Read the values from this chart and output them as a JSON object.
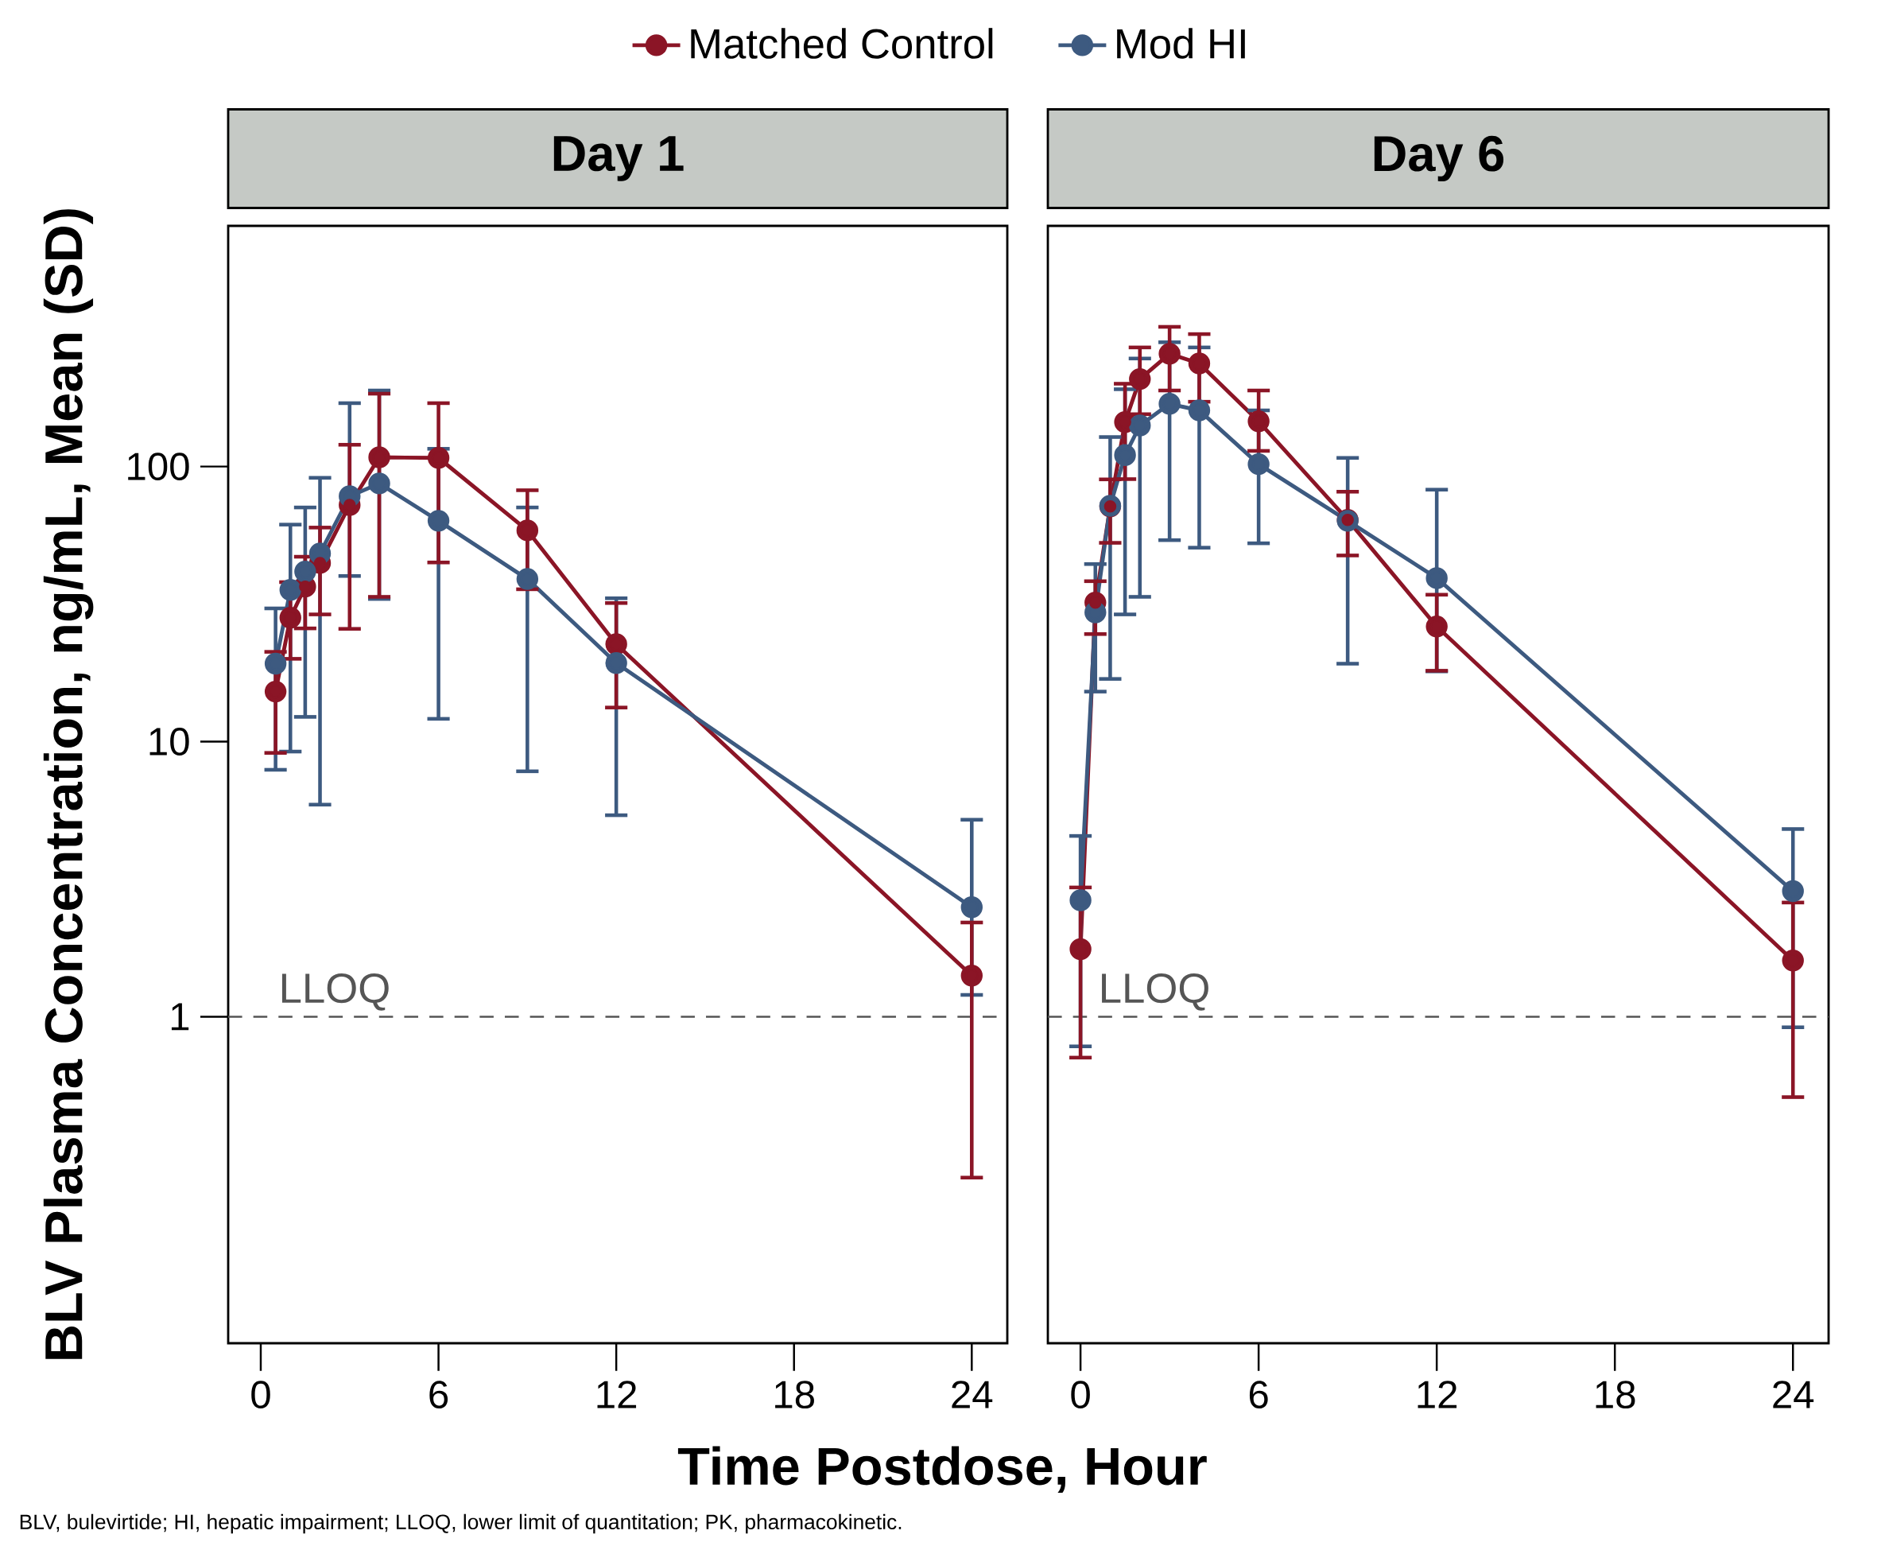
{
  "chart_data": [
    {
      "type": "line",
      "title": "Day 1",
      "xlabel": "Time Postdose, Hour",
      "ylabel": "BLV Plasma Concentration, ng/mL, Mean (SD)",
      "x": [
        0.5,
        1,
        1.5,
        2,
        3,
        4,
        6,
        9,
        12,
        24
      ],
      "xlim": [
        -1.1,
        25.2
      ],
      "xticks": [
        0,
        6,
        12,
        18,
        24
      ],
      "ylim": [
        0.065,
        750
      ],
      "yticks": [
        1,
        10,
        100
      ],
      "log": "y",
      "legend": "top",
      "marker": "circle",
      "line_style": "solid",
      "series": [
        {
          "name": "Matched Control",
          "color": "#8b1526",
          "values": [
            15.2,
            28.2,
            36.6,
            44.6,
            72.5,
            108,
            107.5,
            58.6,
            22.6,
            1.41
          ],
          "errors": [
            [
              9.1,
              21.2
            ],
            [
              20,
              38
            ],
            [
              25.8,
              47
            ],
            [
              29,
              60
            ],
            [
              25.7,
              120
            ],
            [
              33.6,
              184
            ],
            [
              44.8,
              170
            ],
            [
              35.8,
              82
            ],
            [
              13.3,
              31.9
            ],
            [
              0.26,
              2.2
            ]
          ]
        },
        {
          "name": "Mod HI",
          "color": "#3d5a80",
          "values": [
            19.2,
            35.6,
            41.5,
            48.3,
            78,
            86.8,
            63.5,
            39,
            19.3,
            2.5
          ],
          "errors": [
            [
              7.9,
              30.5
            ],
            [
              9.2,
              61.5
            ],
            [
              12.3,
              71
            ],
            [
              5.9,
              91
            ],
            [
              40,
              170
            ],
            [
              33,
              189
            ],
            [
              12.1,
              116
            ],
            [
              7.8,
              71
            ],
            [
              5.4,
              33.2
            ],
            [
              1.2,
              5.2
            ]
          ]
        }
      ],
      "ref_lines": [
        {
          "axis": "y",
          "value": 1,
          "label": "LLOQ",
          "color": "#555555",
          "line_style": "dashed"
        }
      ],
      "annotations": [
        "BLV, bulevirtide; HI, hepatic impairment; LLOQ, lower limit of quantitation; PK, pharmacokinetic."
      ]
    },
    {
      "type": "line",
      "title": "Day 6",
      "x": [
        0,
        0.5,
        1,
        1.5,
        2,
        3,
        4,
        6,
        9,
        12,
        24
      ],
      "xlim": [
        -1.1,
        25.2
      ],
      "xticks": [
        0,
        6,
        12,
        18,
        24
      ],
      "ylim": [
        0.065,
        750
      ],
      "log": "y",
      "tick_labels": "x",
      "marker": "circle",
      "line_style": "solid",
      "series": [
        {
          "color": "#8b1526",
          "values": [
            1.76,
            32,
            71.6,
            145,
            208,
            257,
            237,
            146,
            64,
            26.2,
            1.6
          ],
          "errors": [
            [
              0.71,
              2.95
            ],
            [
              24.6,
              38.3
            ],
            [
              52.8,
              89.8
            ],
            [
              90,
              200
            ],
            [
              155,
              271
            ],
            [
              189,
              322
            ],
            [
              172,
              303
            ],
            [
              114,
              189
            ],
            [
              47.5,
              81
            ],
            [
              18.1,
              34.2
            ],
            [
              0.51,
              2.6
            ]
          ]
        },
        {
          "color": "#3d5a80",
          "values": [
            2.65,
            29.5,
            72,
            110,
            141,
            169,
            160,
            102,
            63.5,
            39.3,
            2.86
          ],
          "errors": [
            [
              0.78,
              4.54
            ],
            [
              15.2,
              44.2
            ],
            [
              16.9,
              128
            ],
            [
              29,
              191
            ],
            [
              33.6,
              247
            ],
            [
              54,
              283
            ],
            [
              50.7,
              271
            ],
            [
              52.6,
              160
            ],
            [
              19.2,
              107.5
            ],
            [
              18,
              82.4
            ],
            [
              0.915,
              4.81
            ]
          ]
        }
      ],
      "ref_lines": [
        {
          "axis": "y",
          "value": 1,
          "label": "LLOQ",
          "color": "#555555",
          "line_style": "dashed"
        }
      ]
    }
  ]
}
